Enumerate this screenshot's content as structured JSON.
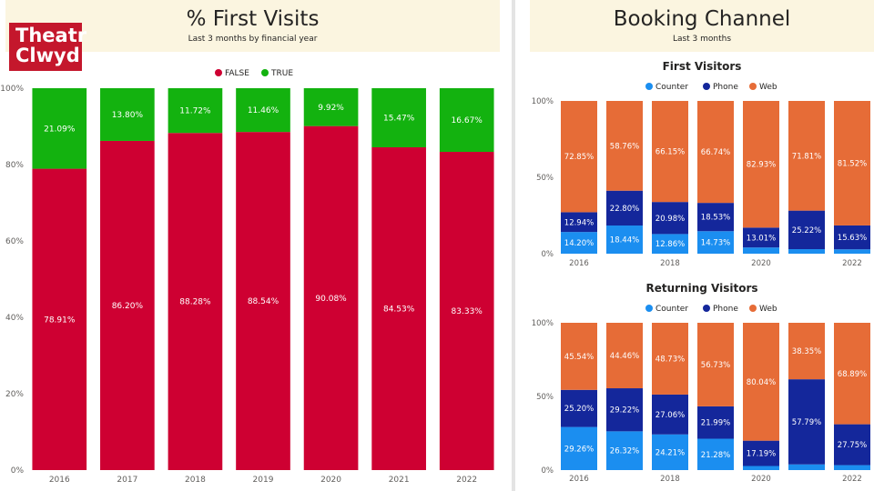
{
  "logo": {
    "line1": "Theatr",
    "line2": "Clwyd"
  },
  "left": {
    "title": "% First Visits",
    "subtitle": "Last 3 months by financial year"
  },
  "right": {
    "title": "Booking Channel",
    "subtitle": "Last 3 months"
  },
  "colors": {
    "false": "#ce0032",
    "true": "#13b20f",
    "counter": "#1b8ef0",
    "phone": "#14279b",
    "web": "#e66c37"
  },
  "chart_data": [
    {
      "type": "bar",
      "stacked": "100%",
      "title": "",
      "categories": [
        "2016",
        "2017",
        "2018",
        "2019",
        "2020",
        "2021",
        "2022"
      ],
      "y_ticks": [
        "0%",
        "20%",
        "40%",
        "60%",
        "80%",
        "100%"
      ],
      "legend": [
        "FALSE",
        "TRUE"
      ],
      "series": [
        {
          "name": "FALSE",
          "values": [
            78.91,
            86.2,
            88.28,
            88.54,
            90.08,
            84.53,
            83.33
          ],
          "labels": [
            "78.91%",
            "86.20%",
            "88.28%",
            "88.54%",
            "90.08%",
            "84.53%",
            "83.33%"
          ]
        },
        {
          "name": "TRUE",
          "values": [
            21.09,
            13.8,
            11.72,
            11.46,
            9.92,
            15.47,
            16.67
          ],
          "labels": [
            "21.09%",
            "13.80%",
            "11.72%",
            "11.46%",
            "9.92%",
            "15.47%",
            "16.67%"
          ]
        }
      ]
    },
    {
      "type": "bar",
      "stacked": "100%",
      "title": "First Visitors",
      "categories": [
        "2016",
        "2017",
        "2018",
        "2019",
        "2020",
        "2021",
        "2022"
      ],
      "x_ticks": [
        "2016",
        "",
        "2018",
        "",
        "2020",
        "",
        "2022"
      ],
      "y_ticks": [
        "0%",
        "50%",
        "100%"
      ],
      "legend": [
        "Counter",
        "Phone",
        "Web"
      ],
      "series": [
        {
          "name": "Counter",
          "values": [
            14.2,
            18.44,
            12.86,
            14.73,
            4.06,
            2.97,
            2.85
          ],
          "labels": [
            "14.20%",
            "18.44%",
            "12.86%",
            "14.73%",
            "",
            "",
            ""
          ]
        },
        {
          "name": "Phone",
          "values": [
            12.94,
            22.8,
            20.98,
            18.53,
            13.01,
            25.22,
            15.63
          ],
          "labels": [
            "12.94%",
            "22.80%",
            "20.98%",
            "18.53%",
            "13.01%",
            "25.22%",
            "15.63%"
          ]
        },
        {
          "name": "Web",
          "values": [
            72.85,
            58.76,
            66.15,
            66.74,
            82.93,
            71.81,
            81.52
          ],
          "labels": [
            "72.85%",
            "58.76%",
            "66.15%",
            "66.74%",
            "82.93%",
            "71.81%",
            "81.52%"
          ]
        }
      ]
    },
    {
      "type": "bar",
      "stacked": "100%",
      "title": "Returning Visitors",
      "categories": [
        "2016",
        "2017",
        "2018",
        "2019",
        "2020",
        "2021",
        "2022"
      ],
      "x_ticks": [
        "2016",
        "",
        "2018",
        "",
        "2020",
        "",
        "2022"
      ],
      "y_ticks": [
        "0%",
        "50%",
        "100%"
      ],
      "legend": [
        "Counter",
        "Phone",
        "Web"
      ],
      "series": [
        {
          "name": "Counter",
          "values": [
            29.26,
            26.32,
            24.21,
            21.28,
            2.77,
            3.86,
            3.36
          ],
          "labels": [
            "29.26%",
            "26.32%",
            "24.21%",
            "21.28%",
            "",
            "",
            ""
          ]
        },
        {
          "name": "Phone",
          "values": [
            25.2,
            29.22,
            27.06,
            21.99,
            17.19,
            57.79,
            27.75
          ],
          "labels": [
            "25.20%",
            "29.22%",
            "27.06%",
            "21.99%",
            "17.19%",
            "57.79%",
            "27.75%"
          ]
        },
        {
          "name": "Web",
          "values": [
            45.54,
            44.46,
            48.73,
            56.73,
            80.04,
            38.35,
            68.89
          ],
          "labels": [
            "45.54%",
            "44.46%",
            "48.73%",
            "56.73%",
            "80.04%",
            "38.35%",
            "68.89%"
          ]
        }
      ]
    }
  ]
}
